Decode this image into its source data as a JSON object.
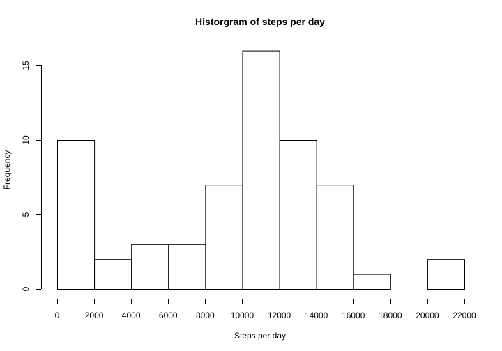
{
  "chart_data": {
    "type": "bar",
    "title": "Historgram of steps per day",
    "xlabel": "Steps per day",
    "ylabel": "Frequency",
    "bins": [
      {
        "from": 0,
        "to": 2000,
        "value": 10
      },
      {
        "from": 2000,
        "to": 4000,
        "value": 2
      },
      {
        "from": 4000,
        "to": 6000,
        "value": 3
      },
      {
        "from": 6000,
        "to": 8000,
        "value": 3
      },
      {
        "from": 8000,
        "to": 10000,
        "value": 7
      },
      {
        "from": 10000,
        "to": 12000,
        "value": 16
      },
      {
        "from": 12000,
        "to": 14000,
        "value": 10
      },
      {
        "from": 14000,
        "to": 16000,
        "value": 7
      },
      {
        "from": 16000,
        "to": 18000,
        "value": 1
      },
      {
        "from": 18000,
        "to": 20000,
        "value": 0
      },
      {
        "from": 20000,
        "to": 22000,
        "value": 2
      }
    ],
    "xticks": [
      0,
      2000,
      4000,
      6000,
      8000,
      10000,
      12000,
      14000,
      16000,
      18000,
      20000,
      22000
    ],
    "yticks": [
      0,
      5,
      10,
      15
    ],
    "xlim": [
      0,
      22000
    ],
    "ylim": [
      0,
      15
    ],
    "grid": false,
    "legend": "none",
    "bar_fill": "#ffffff",
    "bar_stroke": "#000000"
  }
}
